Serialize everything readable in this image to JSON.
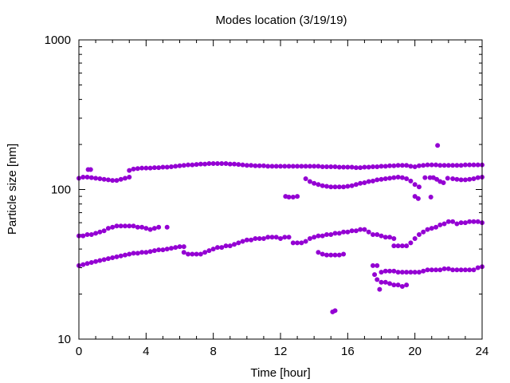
{
  "chart_data": {
    "type": "scatter",
    "title": "Modes location (3/19/19)",
    "xlabel": "Time [hour]",
    "ylabel": "Particle size [nm]",
    "xlim": [
      0,
      24
    ],
    "ylim": [
      10,
      1000
    ],
    "yscale": "log",
    "xticks": [
      "0",
      "4",
      "8",
      "12",
      "16",
      "20",
      "24"
    ],
    "yticks": [
      "10",
      "100",
      "1000"
    ],
    "grid": false,
    "legend": "none",
    "marker_color": "#9400d3",
    "series": [
      {
        "values": [
          [
            0.0,
            119
          ],
          [
            0.25,
            121
          ],
          [
            0.5,
            121
          ],
          [
            0.75,
            120
          ],
          [
            1.0,
            119
          ],
          [
            1.25,
            118
          ],
          [
            1.5,
            117
          ],
          [
            1.75,
            116
          ],
          [
            2.0,
            115
          ],
          [
            2.25,
            115
          ],
          [
            2.5,
            117
          ],
          [
            2.75,
            119
          ],
          [
            3.0,
            121
          ],
          [
            3.0,
            134
          ],
          [
            3.25,
            137
          ],
          [
            3.5,
            138
          ],
          [
            3.75,
            139
          ],
          [
            4.0,
            139
          ],
          [
            4.25,
            139
          ],
          [
            4.5,
            140
          ],
          [
            4.75,
            140
          ],
          [
            5.0,
            141
          ],
          [
            5.25,
            141
          ],
          [
            5.5,
            142
          ],
          [
            5.75,
            143
          ],
          [
            6.0,
            144
          ],
          [
            6.25,
            145
          ],
          [
            6.5,
            146
          ],
          [
            6.75,
            146
          ],
          [
            7.0,
            147
          ],
          [
            7.25,
            148
          ],
          [
            7.5,
            148
          ],
          [
            7.75,
            149
          ],
          [
            8.0,
            149
          ],
          [
            8.25,
            149
          ],
          [
            8.5,
            149
          ],
          [
            8.75,
            149
          ],
          [
            9.0,
            148
          ],
          [
            9.25,
            148
          ],
          [
            9.5,
            147
          ],
          [
            9.75,
            146
          ],
          [
            10.0,
            145
          ],
          [
            10.25,
            145
          ],
          [
            10.5,
            144
          ],
          [
            10.75,
            144
          ],
          [
            11.0,
            144
          ],
          [
            11.25,
            143
          ],
          [
            11.5,
            143
          ],
          [
            11.75,
            143
          ],
          [
            12.0,
            143
          ],
          [
            12.25,
            143
          ],
          [
            12.5,
            143
          ],
          [
            12.75,
            143
          ],
          [
            13.0,
            143
          ],
          [
            13.25,
            143
          ],
          [
            13.5,
            143
          ],
          [
            13.75,
            143
          ],
          [
            14.0,
            143
          ],
          [
            14.25,
            143
          ],
          [
            14.5,
            142
          ],
          [
            14.75,
            142
          ],
          [
            15.0,
            142
          ],
          [
            15.25,
            142
          ],
          [
            15.5,
            141
          ],
          [
            15.75,
            141
          ],
          [
            16.0,
            141
          ],
          [
            16.25,
            141
          ],
          [
            16.5,
            140
          ],
          [
            16.75,
            140
          ],
          [
            17.0,
            141
          ],
          [
            17.25,
            141
          ],
          [
            17.5,
            142
          ],
          [
            17.75,
            142
          ],
          [
            18.0,
            143
          ],
          [
            18.25,
            143
          ],
          [
            18.5,
            144
          ],
          [
            18.75,
            144
          ],
          [
            19.0,
            145
          ],
          [
            19.25,
            145
          ],
          [
            19.5,
            145
          ],
          [
            19.75,
            143
          ],
          [
            20.0,
            142
          ],
          [
            20.25,
            144
          ],
          [
            20.5,
            145
          ],
          [
            20.75,
            146
          ],
          [
            21.0,
            146
          ],
          [
            21.25,
            146
          ],
          [
            21.5,
            145
          ],
          [
            21.75,
            145
          ],
          [
            22.0,
            145
          ],
          [
            22.25,
            145
          ],
          [
            22.5,
            145
          ],
          [
            22.75,
            145
          ],
          [
            23.0,
            146
          ],
          [
            23.25,
            146
          ],
          [
            23.5,
            146
          ],
          [
            23.75,
            146
          ],
          [
            24.0,
            146
          ],
          [
            0.55,
            136
          ],
          [
            0.7,
            136
          ],
          [
            21.35,
            197
          ],
          [
            12.3,
            90
          ],
          [
            12.5,
            89
          ],
          [
            12.75,
            89
          ],
          [
            13.0,
            90
          ],
          [
            13.5,
            118
          ],
          [
            13.75,
            113
          ],
          [
            14.0,
            110
          ],
          [
            14.25,
            108
          ],
          [
            14.5,
            106
          ],
          [
            14.75,
            105
          ],
          [
            15.0,
            104
          ],
          [
            15.25,
            104
          ],
          [
            15.5,
            104
          ],
          [
            15.75,
            104
          ],
          [
            16.0,
            105
          ],
          [
            16.25,
            106
          ],
          [
            16.5,
            108
          ],
          [
            16.75,
            110
          ],
          [
            17.0,
            111
          ],
          [
            17.25,
            113
          ],
          [
            17.5,
            114
          ],
          [
            17.75,
            116
          ],
          [
            18.0,
            117
          ],
          [
            18.25,
            118
          ],
          [
            18.5,
            119
          ],
          [
            18.75,
            120
          ],
          [
            19.0,
            121
          ],
          [
            19.25,
            120
          ],
          [
            19.5,
            118
          ],
          [
            19.75,
            114
          ],
          [
            20.0,
            108
          ],
          [
            20.25,
            104
          ],
          [
            20.0,
            90
          ],
          [
            20.2,
            87
          ],
          [
            20.95,
            89
          ],
          [
            20.6,
            120
          ],
          [
            20.9,
            120
          ],
          [
            21.1,
            120
          ],
          [
            21.3,
            117
          ],
          [
            21.5,
            113
          ],
          [
            21.7,
            111
          ],
          [
            21.95,
            119
          ],
          [
            22.25,
            118
          ],
          [
            22.5,
            117
          ],
          [
            22.75,
            116
          ],
          [
            23.0,
            116
          ],
          [
            23.25,
            117
          ],
          [
            23.5,
            118
          ],
          [
            23.75,
            120
          ],
          [
            24.0,
            121
          ],
          [
            0.0,
            49
          ],
          [
            0.25,
            49
          ],
          [
            0.5,
            50
          ],
          [
            0.75,
            50
          ],
          [
            1.0,
            51
          ],
          [
            1.25,
            52
          ],
          [
            1.5,
            53
          ],
          [
            1.75,
            55
          ],
          [
            2.0,
            56
          ],
          [
            2.25,
            57
          ],
          [
            2.5,
            57
          ],
          [
            2.75,
            57
          ],
          [
            3.0,
            57
          ],
          [
            3.25,
            57
          ],
          [
            3.5,
            56
          ],
          [
            3.75,
            56
          ],
          [
            4.0,
            55
          ],
          [
            4.25,
            54
          ],
          [
            4.5,
            55
          ],
          [
            4.75,
            56
          ],
          [
            5.25,
            56
          ],
          [
            6.25,
            38
          ],
          [
            6.5,
            37
          ],
          [
            6.75,
            37
          ],
          [
            7.0,
            37
          ],
          [
            7.25,
            37
          ],
          [
            7.5,
            38
          ],
          [
            7.75,
            39
          ],
          [
            8.0,
            40
          ],
          [
            8.25,
            41
          ],
          [
            8.5,
            41
          ],
          [
            8.75,
            42
          ],
          [
            9.0,
            42
          ],
          [
            9.25,
            43
          ],
          [
            9.5,
            44
          ],
          [
            9.75,
            45
          ],
          [
            10.0,
            46
          ],
          [
            10.25,
            46
          ],
          [
            10.5,
            47
          ],
          [
            10.75,
            47
          ],
          [
            11.0,
            47
          ],
          [
            11.25,
            48
          ],
          [
            11.5,
            48
          ],
          [
            11.75,
            48
          ],
          [
            12.0,
            47
          ],
          [
            12.25,
            48
          ],
          [
            12.5,
            48
          ],
          [
            12.75,
            44
          ],
          [
            13.0,
            44
          ],
          [
            13.25,
            44
          ],
          [
            13.5,
            45
          ],
          [
            13.75,
            47
          ],
          [
            14.0,
            48
          ],
          [
            14.25,
            49
          ],
          [
            14.5,
            49
          ],
          [
            14.75,
            50
          ],
          [
            15.0,
            50
          ],
          [
            15.25,
            51
          ],
          [
            15.5,
            51
          ],
          [
            15.75,
            52
          ],
          [
            16.0,
            52
          ],
          [
            16.25,
            53
          ],
          [
            16.5,
            53
          ],
          [
            16.75,
            54
          ],
          [
            17.0,
            54
          ],
          [
            17.25,
            52
          ],
          [
            17.5,
            50
          ],
          [
            17.75,
            50
          ],
          [
            18.0,
            49
          ],
          [
            18.25,
            48
          ],
          [
            18.5,
            48
          ],
          [
            18.75,
            47
          ],
          [
            18.75,
            42
          ],
          [
            19.0,
            42
          ],
          [
            19.25,
            42
          ],
          [
            19.5,
            42
          ],
          [
            19.75,
            44
          ],
          [
            20.0,
            47
          ],
          [
            20.25,
            50
          ],
          [
            20.5,
            52
          ],
          [
            20.75,
            54
          ],
          [
            21.0,
            55
          ],
          [
            21.25,
            56
          ],
          [
            21.5,
            58
          ],
          [
            21.75,
            59
          ],
          [
            22.0,
            61
          ],
          [
            22.25,
            61
          ],
          [
            22.5,
            59
          ],
          [
            22.75,
            60
          ],
          [
            23.0,
            60
          ],
          [
            23.25,
            61
          ],
          [
            23.5,
            61
          ],
          [
            23.75,
            61
          ],
          [
            24.0,
            60
          ],
          [
            0.0,
            31
          ],
          [
            0.25,
            31.5
          ],
          [
            0.5,
            32
          ],
          [
            0.75,
            32.5
          ],
          [
            1.0,
            33
          ],
          [
            1.25,
            33.5
          ],
          [
            1.5,
            34
          ],
          [
            1.75,
            34.5
          ],
          [
            2.0,
            35
          ],
          [
            2.25,
            35.5
          ],
          [
            2.5,
            36
          ],
          [
            2.75,
            36.5
          ],
          [
            3.0,
            37
          ],
          [
            3.25,
            37.5
          ],
          [
            3.5,
            37.5
          ],
          [
            3.75,
            38
          ],
          [
            4.0,
            38
          ],
          [
            4.25,
            38.5
          ],
          [
            4.5,
            39
          ],
          [
            4.75,
            39.5
          ],
          [
            5.0,
            39.5
          ],
          [
            5.25,
            40
          ],
          [
            5.5,
            40.5
          ],
          [
            5.75,
            41
          ],
          [
            6.0,
            41.5
          ],
          [
            6.25,
            41.5
          ],
          [
            14.25,
            38
          ],
          [
            14.5,
            37
          ],
          [
            14.75,
            36.5
          ],
          [
            15.0,
            36.5
          ],
          [
            15.25,
            36.5
          ],
          [
            15.5,
            36.5
          ],
          [
            15.75,
            37
          ],
          [
            17.5,
            31
          ],
          [
            17.75,
            31
          ],
          [
            17.6,
            27
          ],
          [
            17.75,
            25
          ],
          [
            17.9,
            21.5
          ],
          [
            18.0,
            24
          ],
          [
            18.25,
            24
          ],
          [
            18.5,
            23.5
          ],
          [
            18.75,
            23
          ],
          [
            19.0,
            23
          ],
          [
            19.25,
            22.5
          ],
          [
            19.5,
            23
          ],
          [
            18.0,
            28
          ],
          [
            18.25,
            28.5
          ],
          [
            18.5,
            28.5
          ],
          [
            18.75,
            28.5
          ],
          [
            19.0,
            28
          ],
          [
            19.25,
            28
          ],
          [
            19.5,
            28
          ],
          [
            19.75,
            28
          ],
          [
            20.0,
            28
          ],
          [
            20.25,
            28
          ],
          [
            20.5,
            28.5
          ],
          [
            20.75,
            29
          ],
          [
            21.0,
            29
          ],
          [
            21.25,
            29
          ],
          [
            21.5,
            29
          ],
          [
            21.75,
            29.5
          ],
          [
            22.0,
            29.5
          ],
          [
            22.25,
            29
          ],
          [
            22.5,
            29
          ],
          [
            22.75,
            29
          ],
          [
            23.0,
            29
          ],
          [
            23.25,
            29
          ],
          [
            23.5,
            29
          ],
          [
            23.75,
            30
          ],
          [
            24.0,
            30.5
          ],
          [
            15.1,
            15.2
          ],
          [
            15.25,
            15.5
          ]
        ]
      }
    ]
  }
}
